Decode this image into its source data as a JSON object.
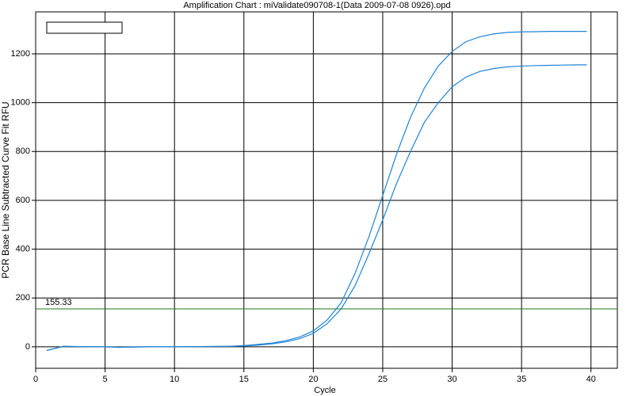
{
  "chart_data": {
    "type": "line",
    "title": "Amplification Chart : miValidate090708-1(Data 2009-07-08 0926).opd",
    "x_label": "Cycle",
    "y_label": "PCR Base Line Subtracted Curve Fit RFU",
    "x": [
      0.8,
      1.5,
      2,
      3,
      5,
      6,
      8,
      10,
      12,
      14,
      15,
      16,
      17,
      18,
      19,
      20,
      21,
      22,
      23,
      24,
      25,
      26,
      27,
      28,
      29,
      30,
      31,
      32,
      33,
      34,
      35,
      36,
      37,
      38,
      39,
      39.7
    ],
    "series": [
      {
        "color": "#1f84d6",
        "values": [
          -15,
          -5,
          2,
          1,
          0,
          -2,
          0,
          0,
          1,
          2,
          5,
          10,
          15,
          25,
          40,
          65,
          110,
          180,
          300,
          450,
          620,
          790,
          940,
          1060,
          1150,
          1210,
          1250,
          1270,
          1282,
          1288,
          1290,
          1291,
          1292,
          1292,
          1292,
          1292
        ]
      },
      {
        "color": "#1f84d6",
        "values": [
          -15,
          -5,
          2,
          1,
          0,
          -2,
          0,
          0,
          1,
          2,
          3,
          7,
          12,
          20,
          33,
          55,
          95,
          155,
          250,
          380,
          520,
          670,
          800,
          920,
          1000,
          1065,
          1105,
          1128,
          1140,
          1147,
          1150,
          1152,
          1153,
          1154,
          1155,
          1155
        ]
      }
    ],
    "threshold": 155.33,
    "threshold_color": "#1e7a1e",
    "xlim": [
      0,
      41.9
    ],
    "xticks": [
      0,
      5,
      10,
      15,
      20,
      25,
      30,
      35,
      40
    ],
    "ylim": [
      -88,
      1372
    ],
    "yticks": [
      0,
      200,
      400,
      600,
      800,
      1000,
      1200
    ],
    "grid": true
  }
}
